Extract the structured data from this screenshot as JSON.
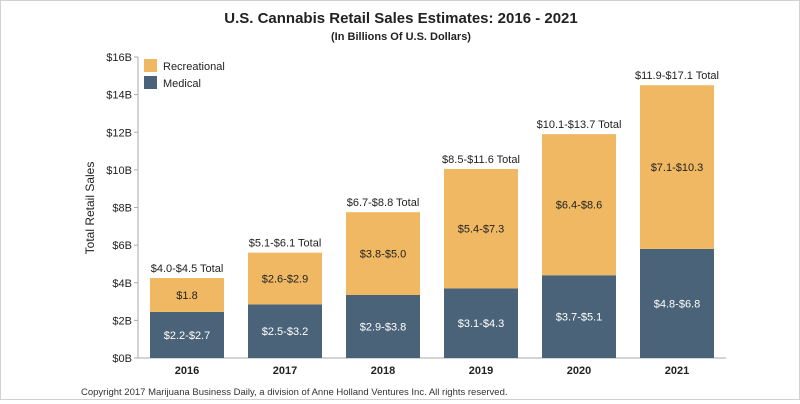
{
  "chart_data": {
    "type": "bar",
    "stacked": true,
    "title": "U.S. Cannabis Retail Sales Estimates: 2016 - 2021",
    "subtitle": "(In Billions Of U.S. Dollars)",
    "ylabel": "Total Retail Sales",
    "xlabel": "",
    "ylim": [
      0,
      16
    ],
    "yticks": [
      0,
      2,
      4,
      6,
      8,
      10,
      12,
      14,
      16
    ],
    "ytick_labels": [
      "$0B",
      "$2B",
      "$4B",
      "$6B",
      "$8B",
      "$10B",
      "$12B",
      "$14B",
      "$16B"
    ],
    "categories": [
      "2016",
      "2017",
      "2018",
      "2019",
      "2020",
      "2021"
    ],
    "legend_position": "top-left",
    "grid": false,
    "series": [
      {
        "name": "Medical",
        "color": "#4a6378",
        "values": [
          2.45,
          2.85,
          3.35,
          3.7,
          4.4,
          5.8
        ],
        "labels": [
          "$2.2-$2.7",
          "$2.5-$3.2",
          "$2.9-$3.8",
          "$3.1-$4.3",
          "$3.7-$5.1",
          "$4.8-$6.8"
        ]
      },
      {
        "name": "Recreational",
        "color": "#f0b862",
        "values": [
          1.8,
          2.75,
          4.4,
          6.35,
          7.5,
          8.7
        ],
        "labels": [
          "$1.8",
          "$2.6-$2.9",
          "$3.8-$5.0",
          "$5.4-$7.3",
          "$6.4-$8.6",
          "$7.1-$10.3"
        ]
      }
    ],
    "totals": [
      "$4.0-$4.5 Total",
      "$5.1-$6.1 Total",
      "$6.7-$8.8 Total",
      "$8.5-$11.6 Total",
      "$10.1-$13.7 Total",
      "$11.9-$17.1 Total"
    ]
  },
  "footer": {
    "copyright": "Copyright 2017 Marijuana Business Daily, a division of Anne Holland Ventures Inc. All rights reserved."
  }
}
